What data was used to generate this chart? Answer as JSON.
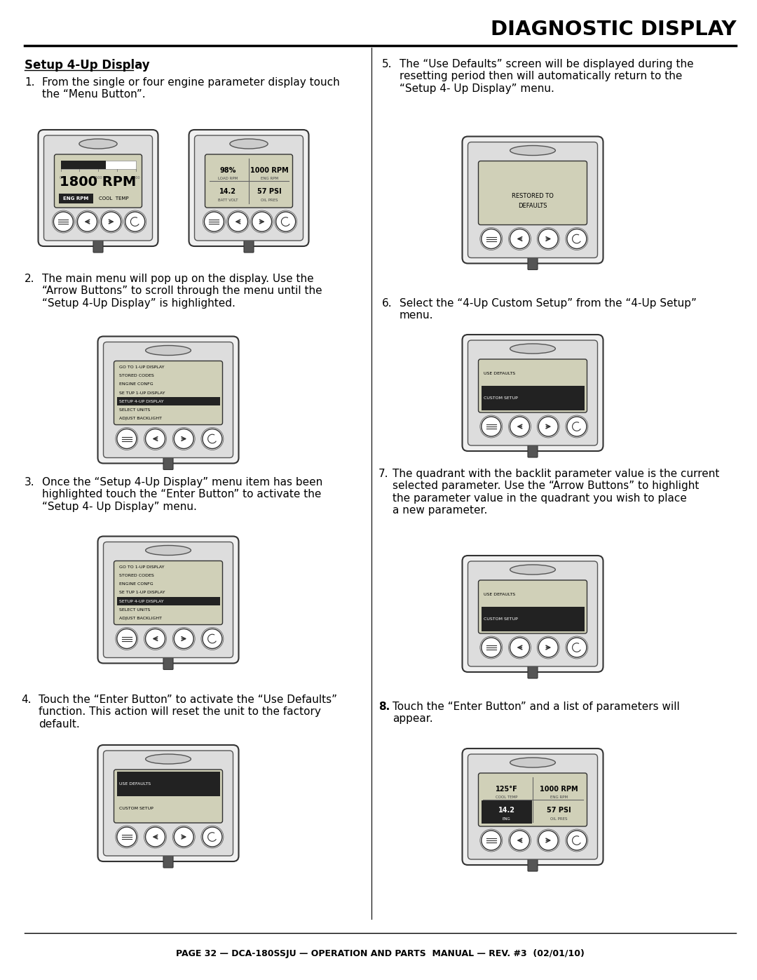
{
  "title": "DIAGNOSTIC DISPLAY",
  "footer": "PAGE 32 — DCA-180SSJU — OPERATION AND PARTS  MANUAL — REV. #3  (02/01/10)",
  "section_title": "Setup 4-Up Display",
  "bg_color": "#ffffff",
  "text_color": "#000000",
  "menu_items": [
    "GO TO 1-UP DISPLAY",
    "STORED CODES",
    "ENGINE CONFG",
    "SE TUP 1-UP DISPLAY",
    "SETUP 4-UP DISPLAY",
    "SELECT UNITS",
    "ADJUST BACKLIGHT"
  ],
  "defaults_menu": [
    "USE DEFAULTS",
    "CUSTOM SETUP"
  ],
  "step1_text1": "From the single or four engine parameter display touch",
  "step1_text2": "the “Menu Button”.",
  "step2_text1": "The main menu will pop up on the display. Use the",
  "step2_text2": "“Arrow Buttons” to scroll through the menu until the",
  "step2_text3": "“Setup 4-Up Display” is highlighted.",
  "step3_text1": "Once the “Setup 4-Up Display” menu item has been",
  "step3_text2": "highlighted touch the “Enter Button” to activate the",
  "step3_text3": "“Setup 4- Up Display” menu.",
  "step4_text1": "Touch the “Enter Button” to activate the “Use Defaults”",
  "step4_text2": "function. This action will reset the unit to the factory",
  "step4_text3": "default.",
  "step5_text1": "The “Use Defaults” screen will be displayed during the",
  "step5_text2": "resetting period then will automatically return to the",
  "step5_text3": "“Setup 4- Up Display” menu.",
  "step6_text1": "Select the “4-Up Custom Setup” from the “4-Up Setup”",
  "step6_text2": "menu.",
  "step7_text1": "The quadrant with the backlit parameter value is the current",
  "step7_text2": "selected parameter. Use the “Arrow Buttons” to highlight",
  "step7_text3": "the parameter value in the quadrant you wish to place",
  "step7_text4": "a new parameter.",
  "step8_text1": "Touch the “Enter Button” and a list of parameters will",
  "step8_text2": "appear.",
  "device_body_color": "#e8e8e8",
  "device_edge_color": "#555555",
  "screen_color": "#d0d0b8",
  "screen_edge": "#333333",
  "highlight_color": "#222222",
  "highlight_text": "#ffffff"
}
